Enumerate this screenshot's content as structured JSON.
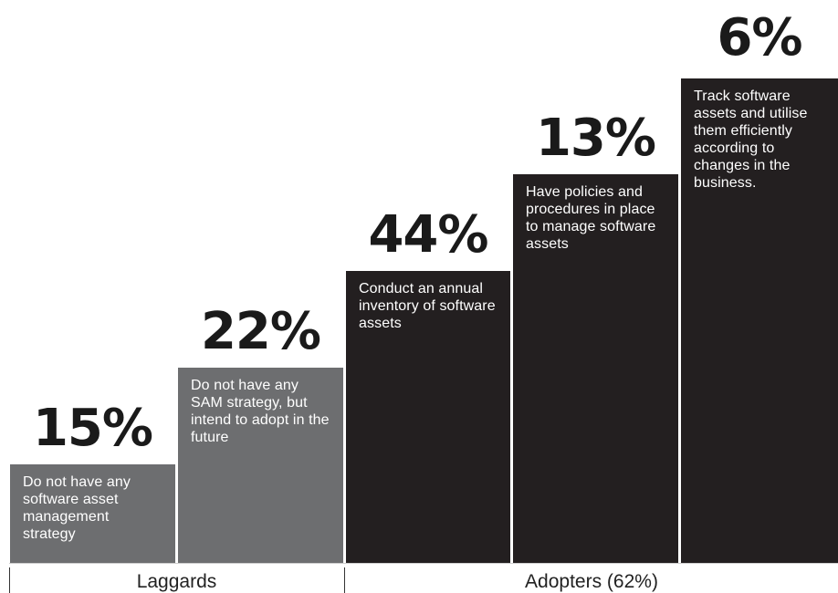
{
  "chart_data": {
    "type": "bar",
    "categories": [
      "Do not have any software asset management strategy",
      "Do not have any SAM strategy, but intend to adopt in the future",
      "Conduct an annual inventory of software assets",
      "Have policies and procedures in place to manage software assets",
      "Track software assets and utilise them efficiently according to changes in the business."
    ],
    "values": [
      15,
      22,
      44,
      13,
      6
    ],
    "value_labels": [
      "15%",
      "22%",
      "44%",
      "13%",
      "6%"
    ],
    "groups": [
      {
        "label": "Laggards",
        "members": [
          0,
          1
        ]
      },
      {
        "label": "Adopters (62%)",
        "members": [
          2,
          3,
          4
        ]
      }
    ],
    "colors": {
      "laggards": "#6d6e70",
      "adopters": "#231f20"
    },
    "note": "Bars are drawn as ascending maturity steps; bar height reflects maturity level, not the percentage value.",
    "steps": [
      {
        "label": "15%",
        "desc": "Do not have any software asset management strategy",
        "group": "Laggards"
      },
      {
        "label": "22%",
        "desc": "Do not have any SAM strategy, but intend to adopt in the future",
        "group": "Laggards"
      },
      {
        "label": "44%",
        "desc": "Conduct an annual inventory of software assets",
        "group": "Adopters (62%)"
      },
      {
        "label": "13%",
        "desc": "Have policies and procedures in place to manage software assets",
        "group": "Adopters (62%)"
      },
      {
        "label": "6%",
        "desc": "Track software assets and utilise them efficiently according to changes in the business.",
        "group": "Adopters (62%)"
      }
    ],
    "group_labels": {
      "laggards": "Laggards",
      "adopters": "Adopters (62%)"
    }
  }
}
